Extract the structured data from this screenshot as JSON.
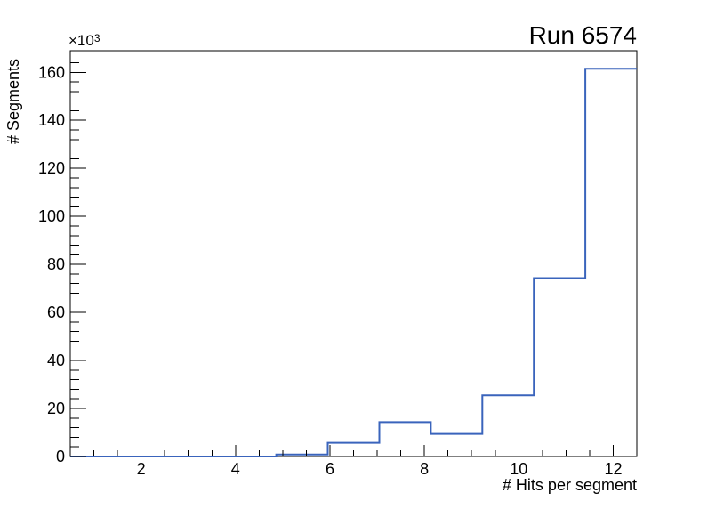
{
  "window": {
    "background": "#ffffff",
    "foreground": "#000000"
  },
  "title": "Run 6574",
  "axes": {
    "x_title": "# Hits per segment",
    "y_title": "# Segments",
    "y_power_base": "×10",
    "y_power_exponent": "3"
  },
  "chart_data": {
    "type": "bar",
    "style": "step-histogram",
    "title": "Run 6574",
    "xlabel": "# Hits per segment",
    "ylabel": "# Segments",
    "y_multiplier_label": "×10³",
    "xlim": [
      0.5,
      12.5
    ],
    "ylim": [
      0,
      169000
    ],
    "grid": false,
    "legend": null,
    "bin_edges": [
      0.5,
      1.5909,
      2.6818,
      3.7727,
      4.8636,
      5.9545,
      7.0455,
      8.1364,
      9.2273,
      10.3182,
      11.4091,
      12.5
    ],
    "counts": [
      0,
      0,
      0,
      0,
      800,
      5700,
      14300,
      9400,
      25500,
      74300,
      161500
    ],
    "x_major_ticks": [
      2,
      4,
      6,
      8,
      10,
      12
    ],
    "x_tick_labels": [
      "2",
      "4",
      "6",
      "8",
      "10",
      "12"
    ],
    "x_minor_tick_step": 0.5,
    "y_major_ticks": [
      0,
      20000,
      40000,
      60000,
      80000,
      100000,
      120000,
      140000,
      160000
    ],
    "y_tick_labels": [
      "0",
      "20",
      "40",
      "60",
      "80",
      "100",
      "120",
      "140",
      "160"
    ],
    "y_minor_tick_step": 4000,
    "line_color": "#3a64bc",
    "axis_color": "#000000"
  }
}
